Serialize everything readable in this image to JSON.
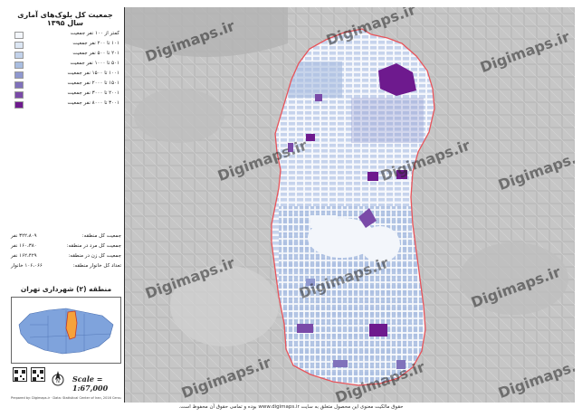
{
  "legend": {
    "title": "جمعیت کل بلوک‌های آماری سال ۱۳۹۵",
    "classes": [
      {
        "label": "کمتر از ۱۰۰ نفر جمعیت",
        "color": "#f3f6fb"
      },
      {
        "label": "۱۰۱ تا ۲۰۰ نفر جمعیت",
        "color": "#dce6f3"
      },
      {
        "label": "۲۰۱ تا ۵۰۰ نفر جمعیت",
        "color": "#c3d2ea"
      },
      {
        "label": "۵۰۱ تا ۱۰۰۰ نفر جمعیت",
        "color": "#a9bde0"
      },
      {
        "label": "۱۰۰۱ تا ۱۵۰۰ نفر جمعیت",
        "color": "#8f98cf"
      },
      {
        "label": "۱۵۰۱ تا ۲۰۰۰ نفر جمعیت",
        "color": "#8071bb"
      },
      {
        "label": "۲۰۰۱ تا ۳۰۰۰ نفر جمعیت",
        "color": "#7a4aa8"
      },
      {
        "label": "۳۰۰۱ تا ۸۰۰۰ نفر جمعیت",
        "color": "#6e1a8e"
      }
    ]
  },
  "stats": [
    {
      "label": "جمعیت کل منطقه:",
      "value": "۳۲۲،۸۰۹ نفر"
    },
    {
      "label": "جمعیت کل مرد در منطقه:",
      "value": "۱۶۰،۳۸۰ نفر"
    },
    {
      "label": "جمعیت کل زن در منطقه:",
      "value": "۱۶۲،۴۲۹ نفر"
    },
    {
      "label": "تعداد کل خانوار منطقه:",
      "value": "۱۰۶،۰۶۶ خانوار"
    }
  ],
  "inset": {
    "title": "منطقه (۲) شهرداری تهران"
  },
  "scale": "Scale = 1:67,000",
  "credit": "Prepared by: Digimaps.ir · Data: Statistical Center of Iran, 2016 Census · Tehran Municipality",
  "watermark": "Digimaps.ir",
  "footer": "حقوق مالکیت معنوی این محصول متعلق به سایت www.digimaps.ir بوده و تمامی حقوق آن محفوظ است.",
  "colors": {
    "boundary": "#e8545a",
    "inset_highlight": "#f6a23a",
    "inset_city": "#7fa3dc",
    "basemap": "#c9c9c9"
  }
}
